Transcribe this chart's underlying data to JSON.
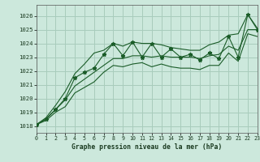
{
  "title": "Graphe pression niveau de la mer (hPa)",
  "bg_color": "#cce8dc",
  "grid_color": "#a8ccbc",
  "line_color": "#1a5c28",
  "xlim": [
    0,
    23
  ],
  "ylim": [
    1017.5,
    1026.8
  ],
  "yticks": [
    1018,
    1019,
    1020,
    1021,
    1022,
    1023,
    1024,
    1025,
    1026
  ],
  "xticks": [
    0,
    1,
    2,
    3,
    4,
    5,
    6,
    7,
    8,
    9,
    10,
    11,
    12,
    13,
    14,
    15,
    16,
    17,
    18,
    19,
    20,
    21,
    22,
    23
  ],
  "hours": [
    0,
    1,
    2,
    3,
    4,
    5,
    6,
    7,
    8,
    9,
    10,
    11,
    12,
    13,
    14,
    15,
    16,
    17,
    18,
    19,
    20,
    21,
    22,
    23
  ],
  "p_zigzag": [
    1018.1,
    1018.5,
    1019.2,
    1020.0,
    1021.5,
    1021.9,
    1022.2,
    1023.2,
    1024.0,
    1023.1,
    1024.1,
    1023.0,
    1024.0,
    1023.0,
    1023.6,
    1023.0,
    1023.2,
    1022.8,
    1023.3,
    1022.9,
    1024.5,
    1023.0,
    1026.1,
    1025.0
  ],
  "p_upper": [
    1018.1,
    1018.6,
    1019.5,
    1020.5,
    1021.8,
    1022.5,
    1023.3,
    1023.5,
    1024.0,
    1023.8,
    1024.1,
    1024.0,
    1024.0,
    1023.9,
    1023.7,
    1023.6,
    1023.5,
    1023.5,
    1023.9,
    1024.1,
    1024.6,
    1024.7,
    1026.1,
    1025.1
  ],
  "p_mid": [
    1018.1,
    1018.5,
    1019.2,
    1019.9,
    1020.9,
    1021.4,
    1021.9,
    1022.4,
    1022.9,
    1022.9,
    1023.1,
    1023.1,
    1023.0,
    1023.1,
    1023.0,
    1023.0,
    1023.0,
    1022.9,
    1023.1,
    1023.2,
    1023.8,
    1023.5,
    1025.0,
    1025.0
  ],
  "p_lower": [
    1018.1,
    1018.4,
    1019.0,
    1019.4,
    1020.4,
    1020.8,
    1021.2,
    1021.9,
    1022.4,
    1022.3,
    1022.5,
    1022.6,
    1022.3,
    1022.5,
    1022.3,
    1022.2,
    1022.2,
    1022.1,
    1022.4,
    1022.4,
    1023.3,
    1022.7,
    1024.7,
    1024.5
  ]
}
